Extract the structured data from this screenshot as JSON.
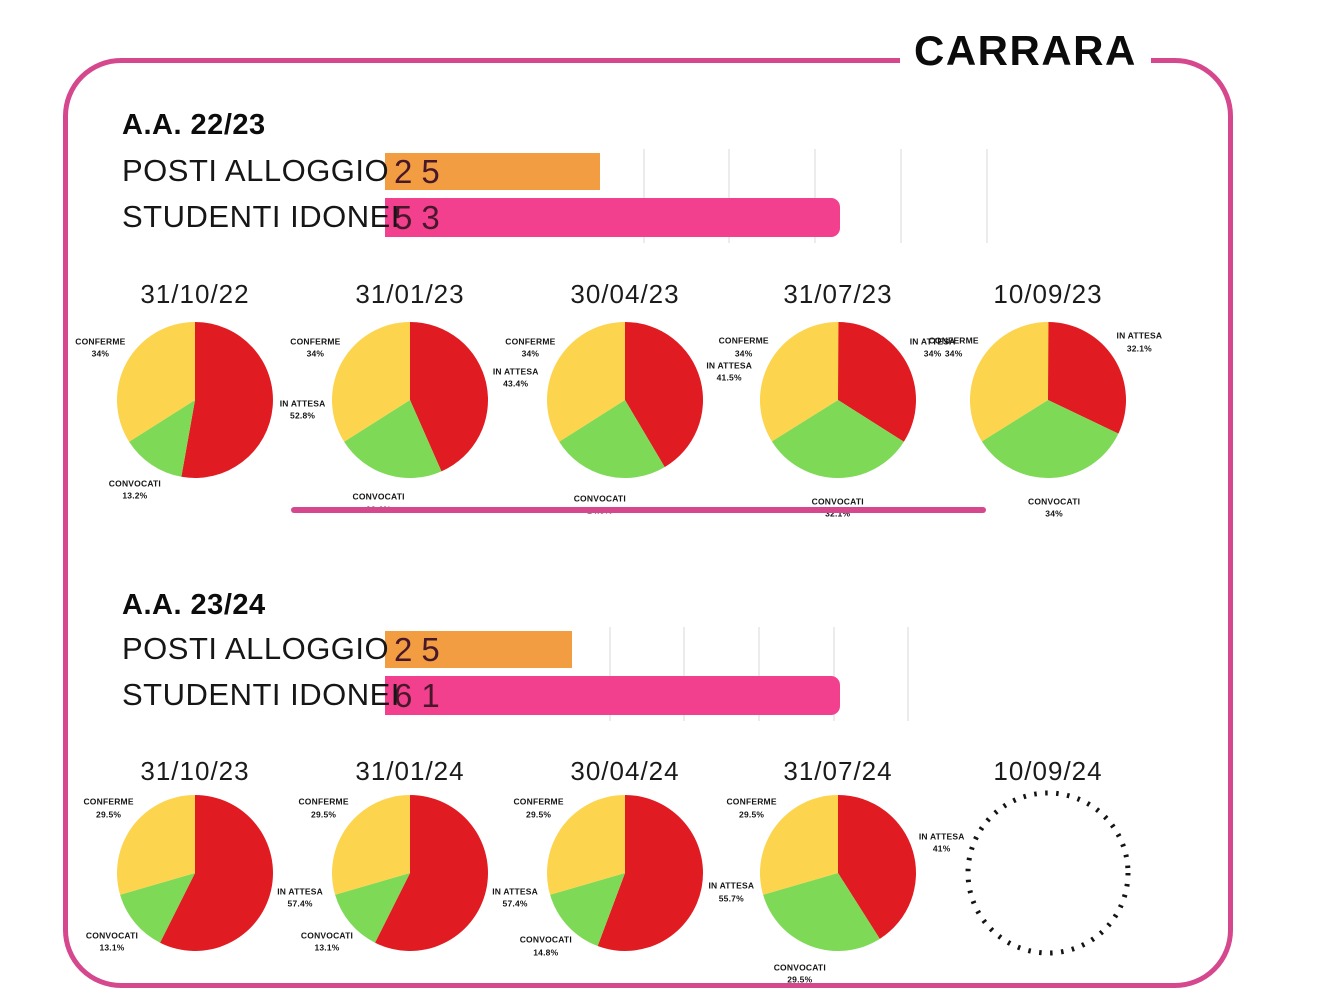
{
  "header": {
    "title": "CARRARA"
  },
  "colors": {
    "border_pink": "#d6488e",
    "bar_orange": "#f39d43",
    "bar_pink": "#f23f8e",
    "in_attesa_red": "#e11b22",
    "convocati_green": "#7ed957",
    "conferme_yellow": "#fcd44d",
    "gridline_gray": "#ececec",
    "bar_value_dark": "#47182a"
  },
  "chart_data": {
    "slice_colors": {
      "IN ATTESA": "#e11b22",
      "CONVOCATI": "#7ed957",
      "CONFERME": "#fcd44d"
    },
    "sections": [
      {
        "label": "A.A. 22/23",
        "has_separator": true,
        "bars": {
          "type": "bar",
          "orientation": "horizontal",
          "categories": [
            "POSTI ALLOGGIO",
            "STUDENTI IDONEI"
          ],
          "values": [
            25,
            53
          ],
          "colors": [
            "#f39d43",
            "#f23f8e"
          ],
          "gridline_values": [
            30,
            40,
            50,
            60,
            70
          ]
        },
        "pies": [
          {
            "type": "pie",
            "date": "31/10/22",
            "empty": false,
            "slices": [
              {
                "label": "IN ATTESA",
                "pct": 52.8
              },
              {
                "label": "CONVOCATI",
                "pct": 13.2
              },
              {
                "label": "CONFERME",
                "pct": 34
              }
            ]
          },
          {
            "type": "pie",
            "date": "31/01/23",
            "empty": false,
            "slices": [
              {
                "label": "IN ATTESA",
                "pct": 43.4
              },
              {
                "label": "CONVOCATI",
                "pct": 22.6
              },
              {
                "label": "CONFERME",
                "pct": 34
              }
            ]
          },
          {
            "type": "pie",
            "date": "30/04/23",
            "empty": false,
            "slices": [
              {
                "label": "IN ATTESA",
                "pct": 41.5
              },
              {
                "label": "CONVOCATI",
                "pct": 24.5
              },
              {
                "label": "CONFERME",
                "pct": 34
              }
            ]
          },
          {
            "type": "pie",
            "date": "31/07/23",
            "empty": false,
            "slices": [
              {
                "label": "IN ATTESA",
                "pct": 34
              },
              {
                "label": "CONVOCATI",
                "pct": 32.1
              },
              {
                "label": "CONFERME",
                "pct": 34
              }
            ]
          },
          {
            "type": "pie",
            "date": "10/09/23",
            "empty": false,
            "slices": [
              {
                "label": "IN ATTESA",
                "pct": 32.1
              },
              {
                "label": "CONVOCATI",
                "pct": 34
              },
              {
                "label": "CONFERME",
                "pct": 34
              }
            ]
          }
        ]
      },
      {
        "label": "A.A. 23/24",
        "has_separator": false,
        "bars": {
          "type": "bar",
          "orientation": "horizontal",
          "categories": [
            "POSTI ALLOGGIO",
            "STUDENTI IDONEI"
          ],
          "values": [
            25,
            61
          ],
          "colors": [
            "#f39d43",
            "#f23f8e"
          ],
          "gridline_values": [
            30,
            40,
            50,
            60,
            70
          ]
        },
        "pies": [
          {
            "type": "pie",
            "date": "31/10/23",
            "empty": false,
            "slices": [
              {
                "label": "IN ATTESA",
                "pct": 57.4
              },
              {
                "label": "CONVOCATI",
                "pct": 13.1
              },
              {
                "label": "CONFERME",
                "pct": 29.5
              }
            ]
          },
          {
            "type": "pie",
            "date": "31/01/24",
            "empty": false,
            "slices": [
              {
                "label": "IN ATTESA",
                "pct": 57.4
              },
              {
                "label": "CONVOCATI",
                "pct": 13.1
              },
              {
                "label": "CONFERME",
                "pct": 29.5
              }
            ]
          },
          {
            "type": "pie",
            "date": "30/04/24",
            "empty": false,
            "slices": [
              {
                "label": "IN ATTESA",
                "pct": 55.7
              },
              {
                "label": "CONVOCATI",
                "pct": 14.8
              },
              {
                "label": "CONFERME",
                "pct": 29.5
              }
            ]
          },
          {
            "type": "pie",
            "date": "31/07/24",
            "empty": false,
            "slices": [
              {
                "label": "IN ATTESA",
                "pct": 41
              },
              {
                "label": "CONVOCATI",
                "pct": 29.5
              },
              {
                "label": "CONFERME",
                "pct": 29.5
              }
            ]
          },
          {
            "type": "pie",
            "date": "10/09/24",
            "empty": true,
            "slices": []
          }
        ]
      }
    ]
  }
}
